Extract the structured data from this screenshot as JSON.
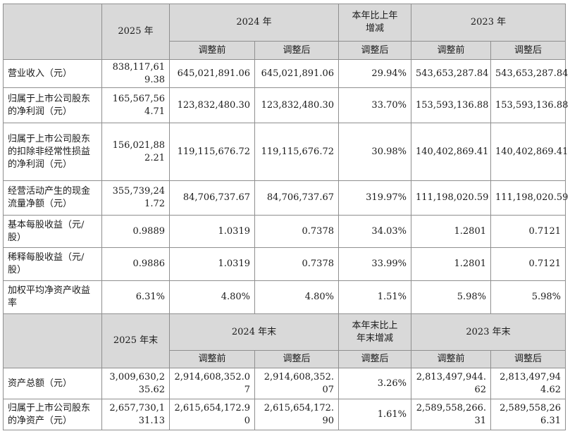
{
  "table": {
    "header1": {
      "top": {
        "col_current": "2025 年",
        "group_prev": "2024 年",
        "change": "本年比上年增减",
        "group_prev2": "2023 年",
        "sub_before": "调整前",
        "sub_after": "调整后",
        "sub_change": "调整后"
      }
    },
    "rows1": [
      {
        "label": "营业收入（元）",
        "cur": "838,117,619.38",
        "p_before": "645,021,891.06",
        "p_after": "645,021,891.06",
        "chg": "29.94%",
        "pp_before": "543,653,287.84",
        "pp_after": "543,653,287.84"
      },
      {
        "label": "归属于上市公司股东的净利润（元）",
        "cur": "165,567,564.71",
        "p_before": "123,832,480.30",
        "p_after": "123,832,480.30",
        "chg": "33.70%",
        "pp_before": "153,593,136.88",
        "pp_after": "153,593,136.88"
      },
      {
        "label": "归属于上市公司股东的扣除非经常性损益的净利润（元）",
        "cur": "156,021,882.21",
        "p_before": "119,115,676.72",
        "p_after": "119,115,676.72",
        "chg": "30.98%",
        "pp_before": "140,402,869.41",
        "pp_after": "140,402,869.41"
      },
      {
        "label": "经营活动产生的现金流量净额（元）",
        "cur": "355,739,241.72",
        "p_before": "84,706,737.67",
        "p_after": "84,706,737.67",
        "chg": "319.97%",
        "pp_before": "111,198,020.59",
        "pp_after": "111,198,020.59"
      },
      {
        "label": "基本每股收益（元/股）",
        "cur": "0.9889",
        "p_before": "1.0319",
        "p_after": "0.7378",
        "chg": "34.03%",
        "pp_before": "1.2801",
        "pp_after": "0.7121"
      },
      {
        "label": "稀释每股收益（元/股）",
        "cur": "0.9886",
        "p_before": "1.0319",
        "p_after": "0.7378",
        "chg": "33.99%",
        "pp_before": "1.2801",
        "pp_after": "0.7121"
      },
      {
        "label": "加权平均净资产收益率",
        "cur": "6.31%",
        "p_before": "4.80%",
        "p_after": "4.80%",
        "chg": "1.51%",
        "pp_before": "5.98%",
        "pp_after": "5.98%"
      }
    ],
    "header2": {
      "col_current": "2025 年末",
      "group_prev": "2024 年末",
      "change": "本年末比上年末增减",
      "group_prev2": "2023 年末",
      "sub_before": "调整前",
      "sub_after": "调整后",
      "sub_change": "调整后"
    },
    "rows2": [
      {
        "label": "资产总额（元）",
        "cur": "3,009,630,235.62",
        "p_before": "2,914,608,352.07",
        "p_after": "2,914,608,352.07",
        "chg": "3.26%",
        "pp_before": "2,813,497,944.62",
        "pp_after": "2,813,497,944.62"
      },
      {
        "label": "归属于上市公司股东的净资产（元）",
        "cur": "2,657,730,131.13",
        "p_before": "2,615,654,172.90",
        "p_after": "2,615,654,172.90",
        "chg": "1.61%",
        "pp_before": "2,589,558,266.31",
        "pp_after": "2,589,558,266.31"
      }
    ]
  }
}
